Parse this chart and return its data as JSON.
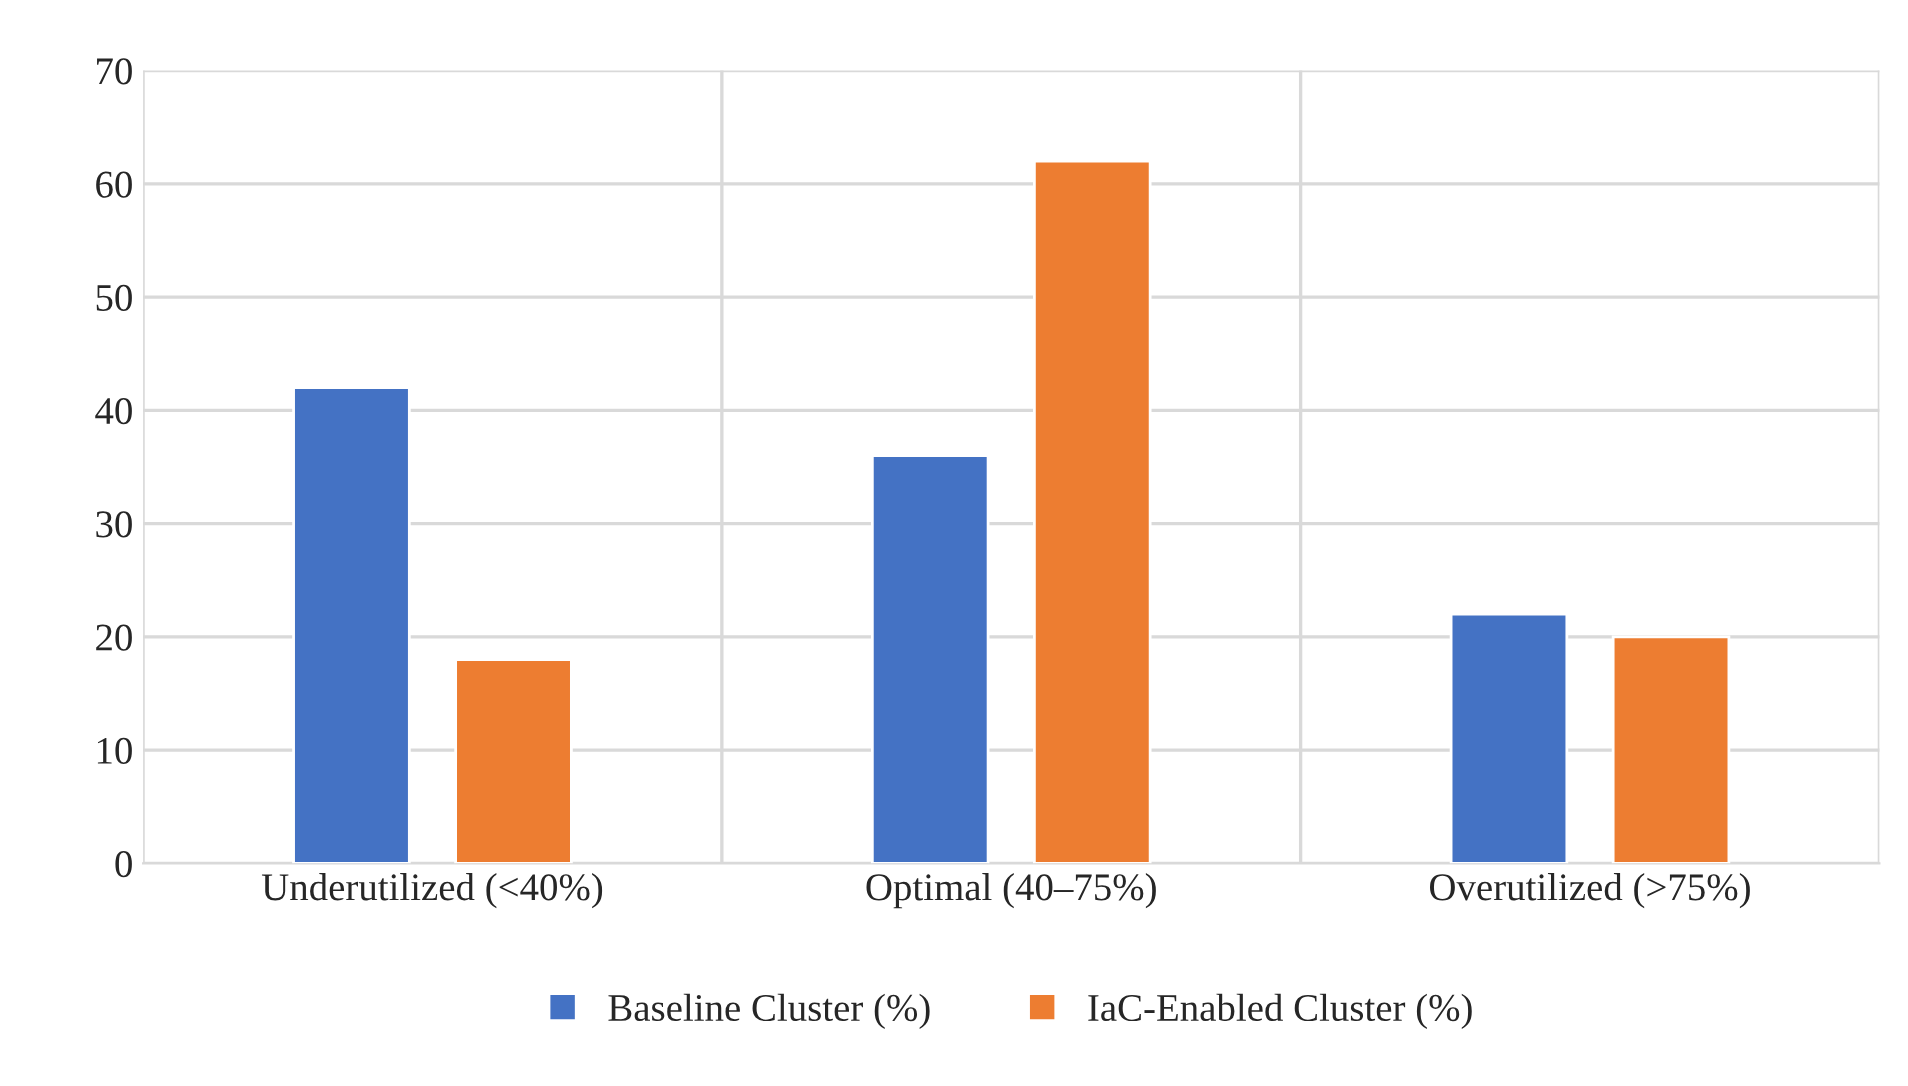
{
  "chart_data": {
    "type": "bar",
    "categories": [
      "Underutilized (<40%)",
      "Optimal (40–75%)",
      "Overutilized (>75%)"
    ],
    "series": [
      {
        "name": "Baseline Cluster (%)",
        "color": "#4472c4",
        "values": [
          42,
          36,
          22
        ]
      },
      {
        "name": "IaC-Enabled Cluster (%)",
        "color": "#ed7d31",
        "values": [
          18,
          62,
          20
        ]
      }
    ],
    "ylim": [
      0,
      70
    ],
    "yticks": [
      0,
      10,
      20,
      30,
      40,
      50,
      60,
      70
    ],
    "grid": true,
    "legend": "bottom"
  }
}
